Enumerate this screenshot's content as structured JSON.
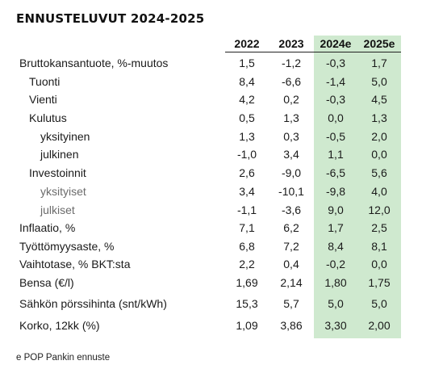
{
  "title": "ENNUSTELUVUT 2024-2025",
  "columns": [
    "2022",
    "2023",
    "2024e",
    "2025e"
  ],
  "rows": [
    {
      "label": "Bruttokansantuote, %-muutos",
      "level": 0,
      "values": [
        "1,5",
        "-1,2",
        "-0,3",
        "1,7"
      ]
    },
    {
      "label": "Tuonti",
      "level": 1,
      "values": [
        "8,4",
        "-6,6",
        "-1,4",
        "5,0"
      ]
    },
    {
      "label": "Vienti",
      "level": 1,
      "values": [
        "4,2",
        "0,2",
        "-0,3",
        "4,5"
      ]
    },
    {
      "label": "Kulutus",
      "level": 1,
      "values": [
        "0,5",
        "1,3",
        "0,0",
        "1,3"
      ]
    },
    {
      "label": "yksityinen",
      "level": 2,
      "values": [
        "1,3",
        "0,3",
        "-0,5",
        "2,0"
      ]
    },
    {
      "label": "julkinen",
      "level": 2,
      "values": [
        "-1,0",
        "3,4",
        "1,1",
        "0,0"
      ]
    },
    {
      "label": "Investoinnit",
      "level": 1,
      "values": [
        "2,6",
        "-9,0",
        "-6,5",
        "5,6"
      ]
    },
    {
      "label": "yksityiset",
      "level": 2,
      "muted": true,
      "values": [
        "3,4",
        "-10,1",
        "-9,8",
        "4,0"
      ]
    },
    {
      "label": "julkiset",
      "level": 2,
      "muted": true,
      "values": [
        "-1,1",
        "-3,6",
        "9,0",
        "12,0"
      ]
    },
    {
      "label": "Inflaatio, %",
      "level": 0,
      "values": [
        "7,1",
        "6,2",
        "1,7",
        "2,5"
      ]
    },
    {
      "label": "Työttömyysaste, %",
      "level": 0,
      "values": [
        "6,8",
        "7,2",
        "8,4",
        "8,1"
      ]
    },
    {
      "label": "Vaihtotase, % BKT:sta",
      "level": 0,
      "values": [
        "2,2",
        "0,4",
        "-0,2",
        "0,0"
      ]
    },
    {
      "label": "Bensa (€/l)",
      "level": 0,
      "values": [
        "1,69",
        "2,14",
        "1,80",
        "1,75"
      ]
    },
    {
      "label": "Sähkön pörssihinta (snt/kWh)",
      "level": 0,
      "values": [
        "15,3",
        "5,7",
        "5,0",
        "5,0"
      ]
    },
    {
      "label": "Korko, 12kk (%)",
      "level": 0,
      "values": [
        "1,09",
        "3,86",
        "3,30",
        "2,00"
      ]
    }
  ],
  "source": "e POP Pankin ennuste",
  "colors": {
    "forecast_bg": "#cfe9cf",
    "muted_text": "#6b6b6b"
  }
}
